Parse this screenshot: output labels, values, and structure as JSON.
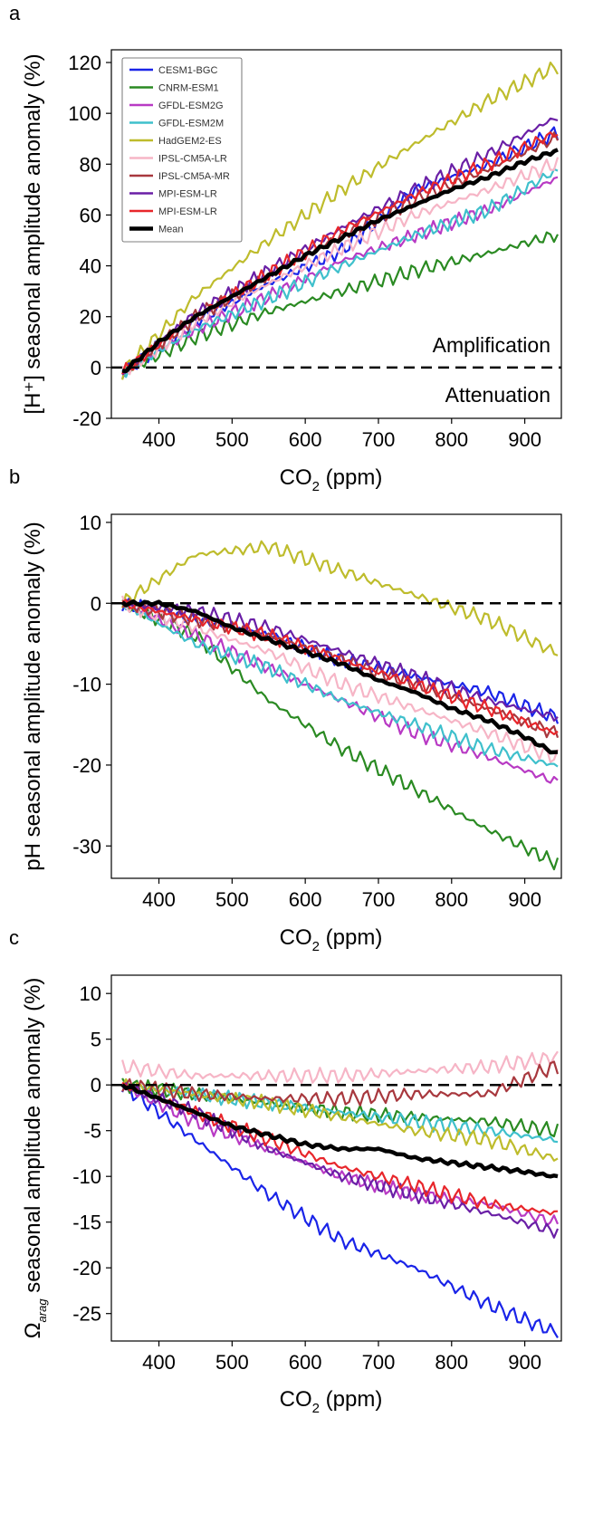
{
  "chart_data": [
    {
      "panel": "a",
      "type": "line",
      "ylabel": "[H⁺] seasonal amplitude anomaly (%)",
      "xlabel": "CO₂ (ppm)",
      "xlim": [
        335,
        950
      ],
      "ylim": [
        -20,
        125
      ],
      "xticks": [
        400,
        500,
        600,
        700,
        800,
        900
      ],
      "yticks": [
        -20,
        0,
        20,
        40,
        60,
        80,
        100,
        120
      ],
      "zero_line": true,
      "annotations": [
        "Amplification",
        "Attenuation"
      ],
      "legend_position": "top-left",
      "series": [
        {
          "name": "CESM1-BGC",
          "color": "#1a24e8",
          "x": [
            350,
            450,
            550,
            650,
            750,
            850,
            940
          ],
          "y": [
            -2,
            18,
            33,
            46,
            70,
            80,
            92
          ]
        },
        {
          "name": "CNRM-ESM1",
          "color": "#2a8a22",
          "x": [
            350,
            450,
            550,
            650,
            750,
            850,
            940
          ],
          "y": [
            -2,
            12,
            22,
            30,
            38,
            45,
            52
          ]
        },
        {
          "name": "GFDL-ESM2G",
          "color": "#b83ac4",
          "x": [
            350,
            450,
            550,
            650,
            750,
            850,
            940
          ],
          "y": [
            -2,
            15,
            28,
            42,
            52,
            62,
            74
          ]
        },
        {
          "name": "GFDL-ESM2M",
          "color": "#3fc0cc",
          "x": [
            350,
            450,
            550,
            650,
            750,
            850,
            940
          ],
          "y": [
            -2,
            15,
            27,
            40,
            52,
            62,
            77
          ]
        },
        {
          "name": "HadGEM2-ES",
          "color": "#bebc2c",
          "x": [
            350,
            450,
            550,
            650,
            750,
            850,
            940
          ],
          "y": [
            -2,
            28,
            50,
            70,
            88,
            105,
            118
          ]
        },
        {
          "name": "IPSL-CM5A-LR",
          "color": "#f6b5c6",
          "x": [
            350,
            450,
            550,
            650,
            750,
            850,
            940
          ],
          "y": [
            -2,
            18,
            33,
            47,
            60,
            70,
            80
          ]
        },
        {
          "name": "IPSL-CM5A-MR",
          "color": "#a8383e",
          "x": [
            350,
            450,
            550,
            650,
            750,
            850,
            940
          ],
          "y": [
            -2,
            20,
            36,
            52,
            66,
            78,
            90
          ]
        },
        {
          "name": "MPI-ESM-LR",
          "color": "#6a1fa6",
          "x": [
            350,
            450,
            550,
            650,
            750,
            850,
            940
          ],
          "y": [
            -2,
            21,
            38,
            55,
            70,
            84,
            98
          ]
        },
        {
          "name": "MPI-ESM-LR",
          "color": "#e8262b",
          "x": [
            350,
            450,
            550,
            650,
            750,
            850,
            940
          ],
          "y": [
            -2,
            20,
            37,
            54,
            68,
            80,
            92
          ]
        },
        {
          "name": "Mean",
          "color": "#000000",
          "x": [
            350,
            400,
            450,
            500,
            550,
            600,
            650,
            700,
            750,
            800,
            850,
            900,
            940
          ],
          "y": [
            -2,
            10,
            20,
            28,
            36,
            44,
            51,
            58,
            64,
            70,
            75,
            81,
            85
          ]
        }
      ]
    },
    {
      "panel": "b",
      "type": "line",
      "ylabel": "pH seasonal amplitude anomaly (%)",
      "xlabel": "CO₂ (ppm)",
      "xlim": [
        335,
        950
      ],
      "ylim": [
        -34,
        11
      ],
      "xticks": [
        400,
        500,
        600,
        700,
        800,
        900
      ],
      "yticks": [
        -30,
        -20,
        -10,
        0,
        10
      ],
      "zero_line": true,
      "series": [
        {
          "name": "CESM1-BGC",
          "color": "#1a24e8",
          "x": [
            350,
            450,
            550,
            650,
            750,
            850,
            940
          ],
          "y": [
            0,
            -2,
            -4,
            -7,
            -9,
            -11,
            -14
          ]
        },
        {
          "name": "CNRM-ESM1",
          "color": "#2a8a22",
          "x": [
            350,
            450,
            550,
            650,
            750,
            850,
            940
          ],
          "y": [
            0,
            -4,
            -12,
            -18,
            -23,
            -28,
            -32
          ]
        },
        {
          "name": "GFDL-ESM2G",
          "color": "#b83ac4",
          "x": [
            350,
            450,
            550,
            650,
            750,
            850,
            940
          ],
          "y": [
            0,
            -4,
            -8,
            -12,
            -16,
            -19,
            -22
          ]
        },
        {
          "name": "GFDL-ESM2M",
          "color": "#3fc0cc",
          "x": [
            350,
            450,
            550,
            650,
            750,
            850,
            940
          ],
          "y": [
            0,
            -5,
            -8,
            -12,
            -15,
            -18,
            -20
          ]
        },
        {
          "name": "HadGEM2-ES",
          "color": "#bebc2c",
          "x": [
            350,
            450,
            550,
            650,
            750,
            850,
            940
          ],
          "y": [
            0,
            6,
            7,
            4,
            1,
            -2,
            -6
          ]
        },
        {
          "name": "IPSL-CM5A-LR",
          "color": "#f6b5c6",
          "x": [
            350,
            450,
            550,
            650,
            750,
            850,
            940
          ],
          "y": [
            0,
            -3,
            -6,
            -10,
            -13,
            -16,
            -19
          ]
        },
        {
          "name": "IPSL-CM5A-MR",
          "color": "#a8383e",
          "x": [
            350,
            450,
            550,
            650,
            750,
            850,
            940
          ],
          "y": [
            0,
            -2,
            -4,
            -7,
            -10,
            -13,
            -16
          ]
        },
        {
          "name": "MPI-ESM-LR",
          "color": "#6a1fa6",
          "x": [
            350,
            450,
            550,
            650,
            750,
            850,
            940
          ],
          "y": [
            0,
            -1,
            -3,
            -6,
            -9,
            -12,
            -14
          ]
        },
        {
          "name": "MPI-ESM-LR",
          "color": "#e8262b",
          "x": [
            350,
            450,
            550,
            650,
            750,
            850,
            940
          ],
          "y": [
            0,
            -2,
            -4,
            -7,
            -10,
            -13,
            -16
          ]
        },
        {
          "name": "Mean",
          "color": "#000000",
          "x": [
            350,
            400,
            450,
            500,
            550,
            600,
            650,
            700,
            750,
            800,
            850,
            900,
            940
          ],
          "y": [
            0,
            0,
            -1,
            -3,
            -4.5,
            -6,
            -7.5,
            -9.5,
            -11,
            -13,
            -14.5,
            -16.5,
            -18.5
          ]
        }
      ]
    },
    {
      "panel": "c",
      "type": "line",
      "ylabel": "Ω seasonal amplitude anomaly (%)",
      "ylabel_subscript": "arag",
      "xlabel": "CO₂ (ppm)",
      "xlim": [
        335,
        950
      ],
      "ylim": [
        -28,
        12
      ],
      "xticks": [
        400,
        500,
        600,
        700,
        800,
        900
      ],
      "yticks": [
        -25,
        -20,
        -15,
        -10,
        -5,
        0,
        5,
        10
      ],
      "zero_line": true,
      "series": [
        {
          "name": "CESM1-BGC",
          "color": "#1a24e8",
          "x": [
            350,
            450,
            550,
            650,
            750,
            850,
            940
          ],
          "y": [
            0,
            -6,
            -12,
            -17,
            -20,
            -24,
            -27
          ]
        },
        {
          "name": "CNRM-ESM1",
          "color": "#2a8a22",
          "x": [
            350,
            450,
            550,
            650,
            750,
            850,
            940
          ],
          "y": [
            0,
            -1,
            -2,
            -3,
            -3.5,
            -4,
            -5
          ]
        },
        {
          "name": "GFDL-ESM2G",
          "color": "#b83ac4",
          "x": [
            350,
            450,
            550,
            650,
            750,
            850,
            940
          ],
          "y": [
            0,
            -4,
            -7,
            -10,
            -12,
            -13,
            -15
          ]
        },
        {
          "name": "GFDL-ESM2M",
          "color": "#3fc0cc",
          "x": [
            350,
            450,
            550,
            650,
            750,
            850,
            940
          ],
          "y": [
            0,
            -1,
            -2,
            -3,
            -4,
            -5,
            -6
          ]
        },
        {
          "name": "HadGEM2-ES",
          "color": "#bebc2c",
          "x": [
            350,
            450,
            550,
            650,
            750,
            850,
            940
          ],
          "y": [
            0,
            -1,
            -2,
            -3.5,
            -5,
            -6,
            -8
          ]
        },
        {
          "name": "IPSL-CM5A-LR",
          "color": "#f6b5c6",
          "x": [
            350,
            450,
            550,
            650,
            750,
            850,
            940
          ],
          "y": [
            2,
            1,
            1,
            1,
            1.5,
            2,
            3
          ]
        },
        {
          "name": "IPSL-CM5A-MR",
          "color": "#a8383e",
          "x": [
            350,
            450,
            550,
            650,
            750,
            850,
            940
          ],
          "y": [
            0,
            -1,
            -1.5,
            -1.5,
            -1,
            -1,
            2
          ]
        },
        {
          "name": "MPI-ESM-LR",
          "color": "#6a1fa6",
          "x": [
            350,
            450,
            550,
            650,
            750,
            850,
            940
          ],
          "y": [
            0,
            -3,
            -7,
            -10,
            -12,
            -14,
            -16
          ]
        },
        {
          "name": "MPI-ESM-LR",
          "color": "#e8262b",
          "x": [
            350,
            450,
            550,
            650,
            750,
            850,
            940
          ],
          "y": [
            0,
            -3,
            -6,
            -9,
            -11,
            -13,
            -14
          ]
        },
        {
          "name": "Mean",
          "color": "#000000",
          "x": [
            350,
            400,
            450,
            500,
            550,
            600,
            650,
            700,
            750,
            800,
            850,
            900,
            940
          ],
          "y": [
            0,
            -1.5,
            -3,
            -4.5,
            -5.5,
            -6.5,
            -7,
            -7,
            -8,
            -8.5,
            -9,
            -9.5,
            -10
          ]
        }
      ]
    }
  ]
}
